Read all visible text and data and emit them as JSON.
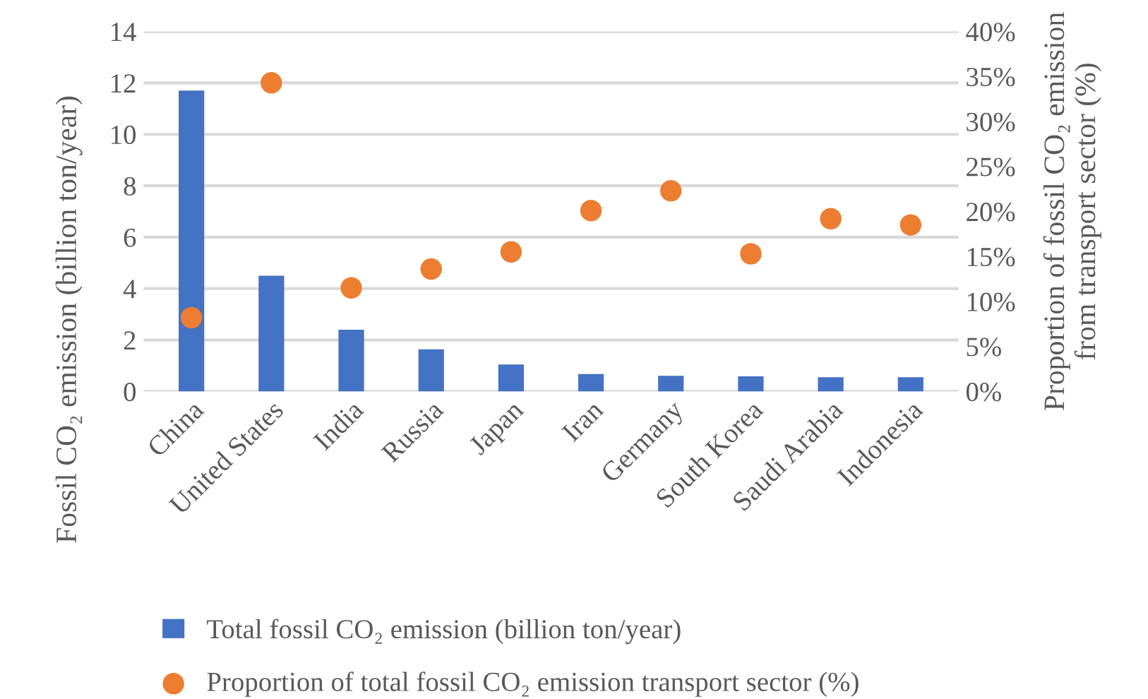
{
  "chart_data": {
    "type": "bar",
    "categories": [
      "China",
      "United States",
      "India",
      "Russia",
      "Japan",
      "Iran",
      "Germany",
      "South Korea",
      "Saudi Arabia",
      "Indonesia"
    ],
    "ylabel": "Fossil CO₂ emission (billion ton/year)",
    "y2label": "Proportion of fossil CO₂ emission from transport sector (%)",
    "series": [
      {
        "name": "Total fossil CO₂ emission (billion ton/year)",
        "color": "#4472c4",
        "values": [
          11.7,
          4.5,
          2.4,
          1.64,
          1.05,
          0.68,
          0.61,
          0.59,
          0.55,
          0.55
        ]
      },
      {
        "name": "Proportion of total fossil CO₂ emission transport sector (%)",
        "type": "scatter",
        "axis": "y2",
        "color": "#ed7d31",
        "marker": "circle",
        "values": [
          8.2,
          34.3,
          11.5,
          13.6,
          15.5,
          20.1,
          22.3,
          15.3,
          19.2,
          18.5
        ]
      }
    ],
    "ylim": [
      0,
      14
    ],
    "yticks": [
      0,
      2,
      4,
      6,
      8,
      10,
      12,
      14
    ],
    "y2lim": [
      0,
      40
    ],
    "y2ticks": [
      {
        "value": 0,
        "label": "0%"
      },
      {
        "value": 5,
        "label": "5%"
      },
      {
        "value": 10,
        "label": "10%"
      },
      {
        "value": 15,
        "label": "15%"
      },
      {
        "value": 20,
        "label": "20%"
      },
      {
        "value": 25,
        "label": "25%"
      },
      {
        "value": 30,
        "label": "30%"
      },
      {
        "value": 35,
        "label": "35%"
      },
      {
        "value": 40,
        "label": "40%"
      }
    ],
    "grid": "y",
    "legend": "bottom"
  }
}
